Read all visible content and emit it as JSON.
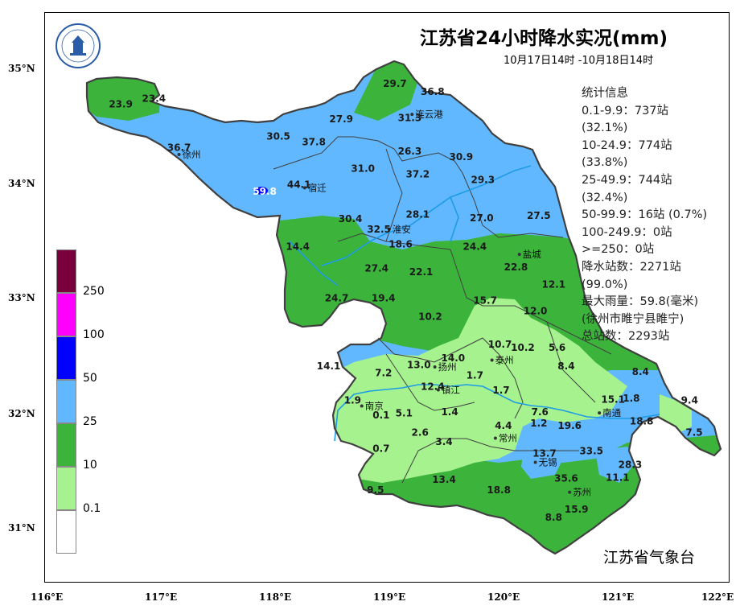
{
  "title": "江苏省24小时降水实况(mm)",
  "period": "10月17日14时 -10月18日14时",
  "agency": "江苏省气象台",
  "statistics": {
    "lines": [
      "统计信息",
      "0.1-9.9：737站",
      "(32.1%)",
      "10-24.9：774站",
      "(33.8%)",
      "25-49.9：744站",
      "(32.4%)",
      "50-99.9：16站 (0.7%)",
      "100-249.9：0站",
      ">=250：0站",
      "降水站数：2271站",
      "(99.0%)",
      "最大雨量：59.8(毫米)",
      "(徐州市睢宁县睢宁)",
      "总站数：2293站"
    ]
  },
  "axes": {
    "lat_ticks": [
      "35°N",
      "34°N",
      "33°N",
      "32°N",
      "31°N"
    ],
    "lon_ticks": [
      "116°E",
      "117°E",
      "118°E",
      "119°E",
      "120°E",
      "121°E",
      "122°E"
    ]
  },
  "legend": {
    "bins": [
      {
        "label": "250",
        "color": "#7a003d"
      },
      {
        "label": "100",
        "color": "#ff00ff"
      },
      {
        "label": "50",
        "color": "#0000ff"
      },
      {
        "label": "25",
        "color": "#61b8ff"
      },
      {
        "label": "10",
        "color": "#3cb43c"
      },
      {
        "label": "0.1",
        "color": "#a6f28f"
      },
      {
        "label": "",
        "color": "#ffffff"
      }
    ]
  },
  "colors": {
    "blue": "#61b8ff",
    "green": "#3cb43c",
    "lightgreen": "#a6f28f",
    "darkblue": "#0000ff",
    "river": "#1e9be6",
    "boundary": "#404040"
  },
  "cities": [
    {
      "name": "连云港",
      "lon": 119.22,
      "lat": 34.6
    },
    {
      "name": "徐州",
      "lon": 117.18,
      "lat": 34.25
    },
    {
      "name": "宿迁",
      "lon": 118.28,
      "lat": 33.96
    },
    {
      "name": "淮安",
      "lon": 119.02,
      "lat": 33.6
    },
    {
      "name": "盐城",
      "lon": 120.16,
      "lat": 33.38
    },
    {
      "name": "扬州",
      "lon": 119.42,
      "lat": 32.4
    },
    {
      "name": "泰州",
      "lon": 119.92,
      "lat": 32.46
    },
    {
      "name": "南京",
      "lon": 118.78,
      "lat": 32.06
    },
    {
      "name": "镇江",
      "lon": 119.45,
      "lat": 32.2
    },
    {
      "name": "常州",
      "lon": 119.95,
      "lat": 31.78
    },
    {
      "name": "南通",
      "lon": 120.86,
      "lat": 32.0
    },
    {
      "name": "无锡",
      "lon": 120.3,
      "lat": 31.57
    },
    {
      "name": "苏州",
      "lon": 120.6,
      "lat": 31.31
    }
  ],
  "station_values": [
    {
      "value": "29.7",
      "lon": 119.07,
      "lat": 34.84
    },
    {
      "value": "36.8",
      "lon": 119.4,
      "lat": 34.77
    },
    {
      "value": "23.9",
      "lon": 116.67,
      "lat": 34.66
    },
    {
      "value": "23.4",
      "lon": 116.96,
      "lat": 34.71
    },
    {
      "value": "31.3",
      "lon": 119.2,
      "lat": 34.54
    },
    {
      "value": "27.9",
      "lon": 118.6,
      "lat": 34.53
    },
    {
      "value": "30.5",
      "lon": 118.05,
      "lat": 34.38
    },
    {
      "value": "37.8",
      "lon": 118.36,
      "lat": 34.33
    },
    {
      "value": "36.7",
      "lon": 117.18,
      "lat": 34.28
    },
    {
      "value": "26.3",
      "lon": 119.2,
      "lat": 34.25
    },
    {
      "value": "30.9",
      "lon": 119.65,
      "lat": 34.2
    },
    {
      "value": "31.0",
      "lon": 118.79,
      "lat": 34.1
    },
    {
      "value": "37.2",
      "lon": 119.27,
      "lat": 34.05
    },
    {
      "value": "29.3",
      "lon": 119.84,
      "lat": 34.0
    },
    {
      "value": "44.1",
      "lon": 118.23,
      "lat": 33.96
    },
    {
      "value": "59.8",
      "lon": 117.93,
      "lat": 33.9
    },
    {
      "value": "28.1",
      "lon": 119.27,
      "lat": 33.7
    },
    {
      "value": "30.4",
      "lon": 118.68,
      "lat": 33.66
    },
    {
      "value": "27.0",
      "lon": 119.83,
      "lat": 33.67
    },
    {
      "value": "27.5",
      "lon": 120.33,
      "lat": 33.69
    },
    {
      "value": "32.5",
      "lon": 118.93,
      "lat": 33.57
    },
    {
      "value": "18.6",
      "lon": 119.12,
      "lat": 33.44
    },
    {
      "value": "14.4",
      "lon": 118.22,
      "lat": 33.42
    },
    {
      "value": "24.4",
      "lon": 119.77,
      "lat": 33.42
    },
    {
      "value": "27.4",
      "lon": 118.91,
      "lat": 33.23
    },
    {
      "value": "22.1",
      "lon": 119.3,
      "lat": 33.2
    },
    {
      "value": "22.8",
      "lon": 120.13,
      "lat": 33.24
    },
    {
      "value": "12.1",
      "lon": 120.46,
      "lat": 33.09
    },
    {
      "value": "24.7",
      "lon": 118.56,
      "lat": 32.97
    },
    {
      "value": "19.4",
      "lon": 118.97,
      "lat": 32.97
    },
    {
      "value": "15.7",
      "lon": 119.86,
      "lat": 32.95
    },
    {
      "value": "12.0",
      "lon": 120.3,
      "lat": 32.86
    },
    {
      "value": "10.2",
      "lon": 119.38,
      "lat": 32.81
    },
    {
      "value": "10.7",
      "lon": 119.99,
      "lat": 32.57
    },
    {
      "value": "10.2",
      "lon": 120.19,
      "lat": 32.54
    },
    {
      "value": "5.6",
      "lon": 120.49,
      "lat": 32.54
    },
    {
      "value": "14.0",
      "lon": 119.58,
      "lat": 32.45
    },
    {
      "value": "13.0",
      "lon": 119.28,
      "lat": 32.39
    },
    {
      "value": "14.1",
      "lon": 118.49,
      "lat": 32.38
    },
    {
      "value": "7.2",
      "lon": 118.97,
      "lat": 32.32
    },
    {
      "value": "8.4",
      "lon": 120.57,
      "lat": 32.38
    },
    {
      "value": "8.4",
      "lon": 121.22,
      "lat": 32.33
    },
    {
      "value": "1.7",
      "lon": 119.77,
      "lat": 32.3
    },
    {
      "value": "12.4",
      "lon": 119.4,
      "lat": 32.2
    },
    {
      "value": "1.7",
      "lon": 120.0,
      "lat": 32.17
    },
    {
      "value": "1.9",
      "lon": 118.7,
      "lat": 32.08
    },
    {
      "value": "15.1",
      "lon": 120.98,
      "lat": 32.09
    },
    {
      "value": "1.8",
      "lon": 121.14,
      "lat": 32.1
    },
    {
      "value": "9.4",
      "lon": 121.65,
      "lat": 32.08
    },
    {
      "value": "0.1",
      "lon": 118.95,
      "lat": 31.95
    },
    {
      "value": "5.1",
      "lon": 119.15,
      "lat": 31.97
    },
    {
      "value": "1.4",
      "lon": 119.55,
      "lat": 31.98
    },
    {
      "value": "7.6",
      "lon": 120.34,
      "lat": 31.98
    },
    {
      "value": "1.2",
      "lon": 120.33,
      "lat": 31.88
    },
    {
      "value": "4.4",
      "lon": 120.02,
      "lat": 31.86
    },
    {
      "value": "19.6",
      "lon": 120.6,
      "lat": 31.86
    },
    {
      "value": "18.8",
      "lon": 121.23,
      "lat": 31.9
    },
    {
      "value": "7.5",
      "lon": 121.69,
      "lat": 31.8
    },
    {
      "value": "2.6",
      "lon": 119.29,
      "lat": 31.8
    },
    {
      "value": "3.4",
      "lon": 119.5,
      "lat": 31.72
    },
    {
      "value": "0.7",
      "lon": 118.95,
      "lat": 31.66
    },
    {
      "value": "13.7",
      "lon": 120.38,
      "lat": 31.62
    },
    {
      "value": "33.5",
      "lon": 120.79,
      "lat": 31.64
    },
    {
      "value": "28.3",
      "lon": 121.13,
      "lat": 31.52
    },
    {
      "value": "35.6",
      "lon": 120.57,
      "lat": 31.4
    },
    {
      "value": "11.1",
      "lon": 121.02,
      "lat": 31.41
    },
    {
      "value": "9.5",
      "lon": 118.9,
      "lat": 31.3
    },
    {
      "value": "13.4",
      "lon": 119.5,
      "lat": 31.39
    },
    {
      "value": "18.8",
      "lon": 119.98,
      "lat": 31.3
    },
    {
      "value": "15.9",
      "lon": 120.66,
      "lat": 31.13
    },
    {
      "value": "8.8",
      "lon": 120.46,
      "lat": 31.06
    }
  ]
}
